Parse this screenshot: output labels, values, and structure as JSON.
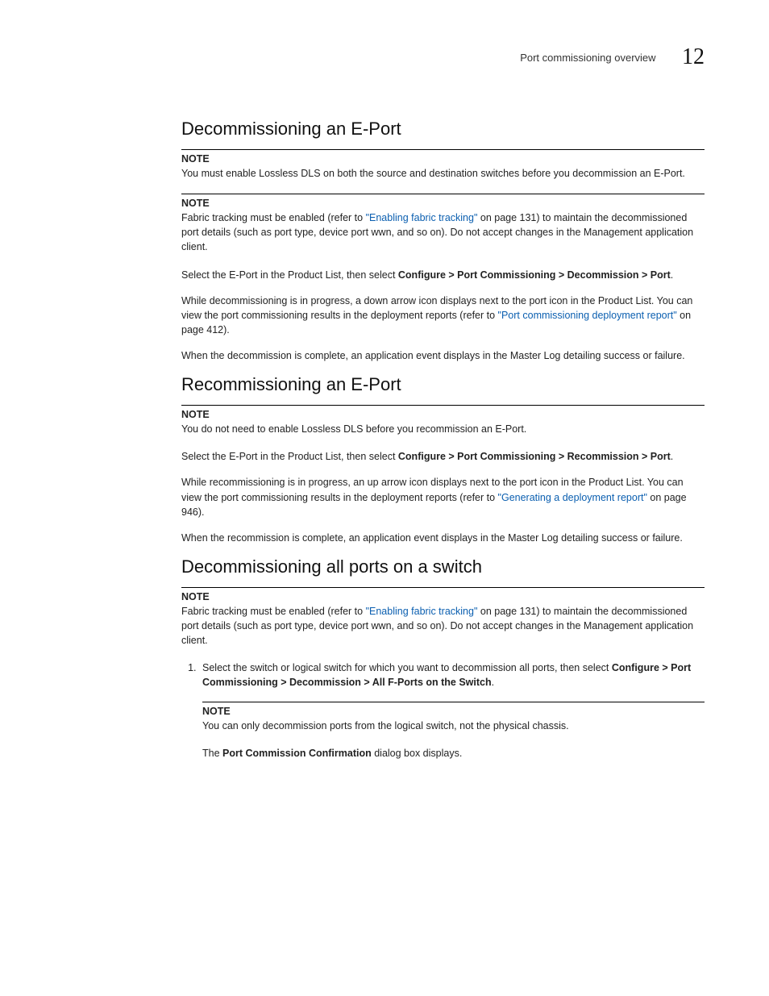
{
  "header": {
    "title": "Port commissioning overview",
    "chapter": "12"
  },
  "section1": {
    "heading": "Decommissioning an E-Port",
    "note1": {
      "label": "NOTE",
      "text": "You must enable Lossless DLS on both the source and destination switches before you decommission an E-Port."
    },
    "note2": {
      "label": "NOTE",
      "pre": "Fabric tracking must be enabled (refer to ",
      "link": "\"Enabling fabric tracking\"",
      "post": " on page 131) to maintain the decommissioned port details (such as port type, device port wwn, and so on). Do not accept changes in the Management application client."
    },
    "para1": {
      "pre": "Select the E-Port in the Product List, then select ",
      "bold": "Configure > Port Commissioning > Decommission > Port",
      "post": "."
    },
    "para2": {
      "pre": "While decommissioning is in progress, a down arrow icon displays next to the port icon in the Product List. You can view the port commissioning results in the deployment reports (refer to ",
      "link": "\"Port commissioning deployment report\"",
      "post": " on page 412)."
    },
    "para3": "When the decommission is complete, an application event displays in the Master Log detailing success or failure."
  },
  "section2": {
    "heading": "Recommissioning an E-Port",
    "note1": {
      "label": "NOTE",
      "text": "You do not need to enable Lossless DLS before you recommission an E-Port."
    },
    "para1": {
      "pre": "Select the E-Port in the Product List, then select ",
      "bold": "Configure > Port Commissioning > Recommission > Port",
      "post": "."
    },
    "para2": {
      "pre": "While recommissioning is in progress, an up arrow icon displays next to the port icon in the Product List. You can view the port commissioning results in the deployment reports (refer to ",
      "link": "\"Generating a deployment report\"",
      "post": " on page 946)."
    },
    "para3": "When the recommission is complete, an application event displays in the Master Log detailing success or failure."
  },
  "section3": {
    "heading": "Decommissioning all ports on a switch",
    "note1": {
      "label": "NOTE",
      "pre": "Fabric tracking must be enabled (refer to ",
      "link": "\"Enabling fabric tracking\"",
      "post": " on page 131) to maintain the decommissioned port details (such as port type, device port wwn, and so on). Do not accept changes in the Management application client."
    },
    "step1": {
      "pre": "Select the switch or logical switch for which you want to decommission all ports, then select ",
      "bold": "Configure > Port Commissioning > Decommission > All F-Ports on the Switch",
      "post": "."
    },
    "stepnote": {
      "label": "NOTE",
      "text": "You can only decommission ports from the logical switch, not the physical chassis."
    },
    "steptail": {
      "pre": "The ",
      "bold": "Port Commission Confirmation",
      "post": " dialog box displays."
    }
  }
}
